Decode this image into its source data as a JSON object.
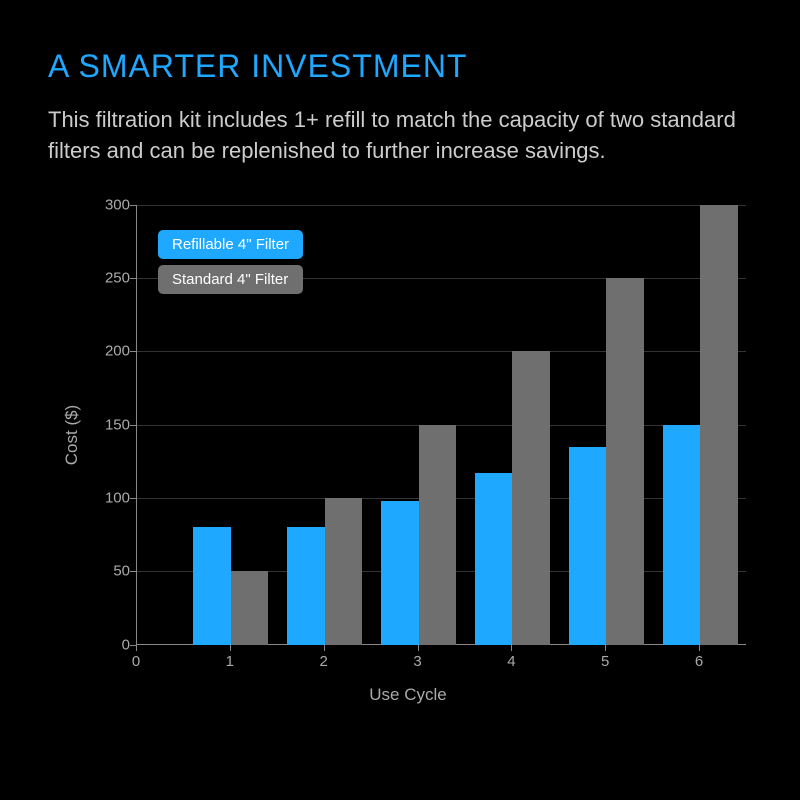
{
  "title": {
    "text": "A SMARTER INVESTMENT",
    "color": "#1ea8ff",
    "fontsize": 32
  },
  "description": {
    "text": "This filtration kit includes 1+ refill to match the capacity of two standard filters and can be replenished to further increase savings.",
    "color": "#cccccc",
    "fontsize": 22
  },
  "chart": {
    "type": "bar",
    "background_color": "#000000",
    "axis_color": "#888888",
    "tick_label_color": "#aaaaaa",
    "grid_color": "#333333",
    "ylabel": "Cost ($)",
    "xlabel": "Use Cycle",
    "label_fontsize": 17,
    "tick_fontsize": 15,
    "ylim": [
      0,
      300
    ],
    "yticks": [
      0,
      50,
      100,
      150,
      200,
      250,
      300
    ],
    "xlim": [
      0,
      6.5
    ],
    "xticks": [
      0,
      1,
      2,
      3,
      4,
      5,
      6
    ],
    "bar_width": 0.4,
    "series": [
      {
        "name": "Refillable 4\" Filter",
        "color": "#1ea8ff",
        "values": [
          80,
          80,
          98,
          117,
          135,
          150
        ]
      },
      {
        "name": "Standard 4\" Filter",
        "color": "#6f6f6f",
        "values": [
          50,
          100,
          150,
          200,
          250,
          300
        ]
      }
    ],
    "categories": [
      1,
      2,
      3,
      4,
      5,
      6
    ],
    "legend": {
      "position": "top-left",
      "items": [
        {
          "label": "Refillable 4\" Filter",
          "bg_color": "#1ea8ff"
        },
        {
          "label": "Standard 4\"  Filter",
          "bg_color": "#6f6f6f"
        }
      ]
    }
  }
}
